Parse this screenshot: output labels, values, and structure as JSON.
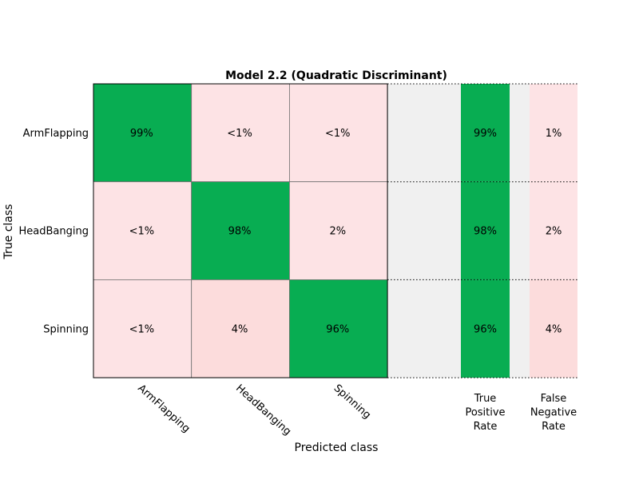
{
  "chart_data": {
    "type": "heatmap",
    "title": "Model 2.2 (Quadratic Discriminant)",
    "xlabel": "Predicted class",
    "ylabel": "True class",
    "classes": [
      "ArmFlapping",
      "HeadBanging",
      "Spinning"
    ],
    "cell_labels": [
      [
        "99%",
        "<1%",
        "<1%"
      ],
      [
        "<1%",
        "98%",
        "2%"
      ],
      [
        "<1%",
        "4%",
        "96%"
      ]
    ],
    "cell_kind": [
      [
        "correct",
        "error",
        "error"
      ],
      [
        "error",
        "correct",
        "error"
      ],
      [
        "error",
        "error",
        "correct"
      ]
    ],
    "summary_columns": [
      {
        "header": [
          "True",
          "Positive",
          "Rate"
        ],
        "kind": "correct",
        "values": [
          "99%",
          "98%",
          "96%"
        ]
      },
      {
        "header": [
          "False",
          "Negative",
          "Rate"
        ],
        "kind": "error",
        "values": [
          "1%",
          "2%",
          "4%"
        ]
      }
    ],
    "colors": {
      "correct": "#08ad52",
      "error": "#fde3e5",
      "error_darker": "#fcdcdc",
      "panel_background": "#f0f0f0"
    }
  }
}
